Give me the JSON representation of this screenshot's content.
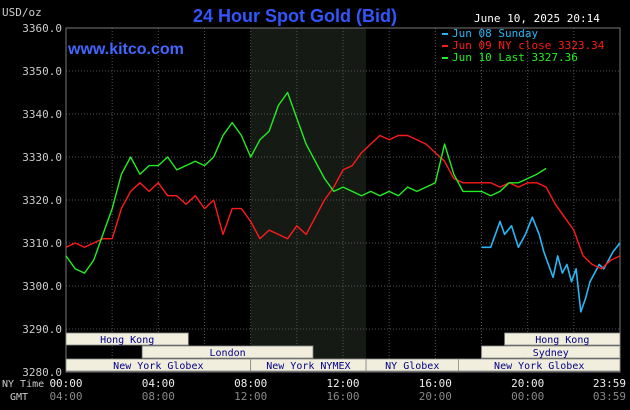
{
  "header": {
    "title": "24 Hour Spot Gold (Bid)",
    "currency": "USD/oz",
    "date": "June 10, 2025 20:14",
    "site": "www.kitco.com"
  },
  "legend": [
    {
      "label": "Jun 08 Sunday",
      "color": "#29b6f6"
    },
    {
      "label": "Jun 09 NY close 3323.34",
      "color": "#ff1a1a"
    },
    {
      "label": "Jun 10 Last 3327.36",
      "color": "#22ee22"
    }
  ],
  "axis": {
    "ny_label": "NY Time",
    "gmt_label": "GMT",
    "ny_ticks": [
      "00:00",
      "04:00",
      "08:00",
      "12:00",
      "16:00",
      "20:00",
      "23:59"
    ],
    "gmt_ticks": [
      "04:00",
      "08:00",
      "12:00",
      "16:00",
      "20:00",
      "00:00",
      "03:59"
    ],
    "y_ticks": [
      "3360.0",
      "3350.0",
      "3340.0",
      "3330.0",
      "3320.0",
      "3310.0",
      "3300.0",
      "3290.0",
      "3280.0"
    ]
  },
  "sessions": [
    {
      "label": "Hong Kong",
      "start": 0.0,
      "end": 5.3
    },
    {
      "label": "Hong Kong",
      "start": 19.0,
      "end": 24.0
    },
    {
      "label": "London",
      "start": 3.3,
      "end": 10.7
    },
    {
      "label": "Sydney",
      "start": 18.0,
      "end": 24.0
    },
    {
      "label": "New York Globex",
      "start": 0.0,
      "end": 8.0
    },
    {
      "label": "New York NYMEX",
      "start": 8.0,
      "end": 13.0
    },
    {
      "label": "NY Globex",
      "start": 13.0,
      "end": 17.0
    },
    {
      "label": "New York Globex",
      "start": 17.0,
      "end": 24.0
    }
  ],
  "colors": {
    "background": "#000000",
    "grid": "#555555",
    "nymex_shade": "#151a15",
    "title": "#3355ff",
    "site": "#4466ff",
    "session_fill": "#f2eedd",
    "session_text": "#000088",
    "axis_text": "#cccccc"
  },
  "chart_data": {
    "type": "line",
    "x_unit": "hours (NY time)",
    "xlim": [
      0,
      24
    ],
    "ylim": [
      3280,
      3360
    ],
    "y_unit": "USD/oz",
    "grid": true,
    "legend_position": "top-right",
    "series": [
      {
        "name": "Jun 08 Sunday",
        "color": "#29b6f6",
        "points": [
          [
            18.0,
            3309.0
          ],
          [
            18.4,
            3309.0
          ],
          [
            18.8,
            3315.0
          ],
          [
            19.0,
            3312.0
          ],
          [
            19.3,
            3314.0
          ],
          [
            19.6,
            3309.0
          ],
          [
            19.9,
            3312.0
          ],
          [
            20.2,
            3316.0
          ],
          [
            20.5,
            3312.0
          ],
          [
            20.7,
            3308.0
          ],
          [
            20.9,
            3305.0
          ],
          [
            21.1,
            3302.0
          ],
          [
            21.3,
            3307.0
          ],
          [
            21.5,
            3303.0
          ],
          [
            21.7,
            3305.0
          ],
          [
            21.9,
            3301.0
          ],
          [
            22.1,
            3304.0
          ],
          [
            22.3,
            3294.0
          ],
          [
            22.5,
            3297.0
          ],
          [
            22.7,
            3301.0
          ],
          [
            22.9,
            3303.0
          ],
          [
            23.1,
            3305.0
          ],
          [
            23.3,
            3304.0
          ],
          [
            23.5,
            3306.0
          ],
          [
            23.7,
            3308.0
          ],
          [
            24.0,
            3310.0
          ]
        ]
      },
      {
        "name": "Jun 09 NY close 3323.34",
        "color": "#ff1a1a",
        "points": [
          [
            0.0,
            3309.0
          ],
          [
            0.4,
            3310.0
          ],
          [
            0.8,
            3309.0
          ],
          [
            1.2,
            3310.0
          ],
          [
            1.6,
            3311.0
          ],
          [
            2.0,
            3311.0
          ],
          [
            2.4,
            3318.0
          ],
          [
            2.8,
            3322.0
          ],
          [
            3.2,
            3324.0
          ],
          [
            3.6,
            3322.0
          ],
          [
            4.0,
            3324.0
          ],
          [
            4.4,
            3321.0
          ],
          [
            4.8,
            3321.0
          ],
          [
            5.2,
            3319.0
          ],
          [
            5.6,
            3321.0
          ],
          [
            6.0,
            3318.0
          ],
          [
            6.4,
            3320.0
          ],
          [
            6.8,
            3312.0
          ],
          [
            7.2,
            3318.0
          ],
          [
            7.6,
            3318.0
          ],
          [
            8.0,
            3315.0
          ],
          [
            8.4,
            3311.0
          ],
          [
            8.8,
            3313.0
          ],
          [
            9.2,
            3312.0
          ],
          [
            9.6,
            3311.0
          ],
          [
            10.0,
            3314.0
          ],
          [
            10.4,
            3312.0
          ],
          [
            10.8,
            3316.0
          ],
          [
            11.2,
            3320.0
          ],
          [
            11.6,
            3323.0
          ],
          [
            12.0,
            3327.0
          ],
          [
            12.4,
            3328.0
          ],
          [
            12.8,
            3331.0
          ],
          [
            13.2,
            3333.0
          ],
          [
            13.6,
            3335.0
          ],
          [
            14.0,
            3334.0
          ],
          [
            14.4,
            3335.0
          ],
          [
            14.8,
            3335.0
          ],
          [
            15.2,
            3334.0
          ],
          [
            15.6,
            3333.0
          ],
          [
            16.0,
            3331.0
          ],
          [
            16.4,
            3329.0
          ],
          [
            16.8,
            3325.0
          ],
          [
            17.2,
            3324.0
          ],
          [
            17.6,
            3324.0
          ],
          [
            18.0,
            3324.0
          ],
          [
            18.4,
            3324.0
          ],
          [
            18.8,
            3323.0
          ],
          [
            19.2,
            3324.0
          ],
          [
            19.6,
            3323.0
          ],
          [
            20.0,
            3324.0
          ],
          [
            20.4,
            3324.0
          ],
          [
            20.8,
            3323.0
          ],
          [
            21.2,
            3319.0
          ],
          [
            21.6,
            3316.0
          ],
          [
            22.0,
            3313.0
          ],
          [
            22.4,
            3307.0
          ],
          [
            22.8,
            3305.0
          ],
          [
            23.2,
            3304.0
          ],
          [
            23.6,
            3306.0
          ],
          [
            24.0,
            3307.0
          ]
        ]
      },
      {
        "name": "Jun 10 Last 3327.36",
        "color": "#22ee22",
        "points": [
          [
            0.0,
            3307.0
          ],
          [
            0.4,
            3304.0
          ],
          [
            0.8,
            3303.0
          ],
          [
            1.2,
            3306.0
          ],
          [
            1.6,
            3312.0
          ],
          [
            2.0,
            3318.0
          ],
          [
            2.4,
            3326.0
          ],
          [
            2.8,
            3330.0
          ],
          [
            3.2,
            3326.0
          ],
          [
            3.6,
            3328.0
          ],
          [
            4.0,
            3328.0
          ],
          [
            4.4,
            3330.0
          ],
          [
            4.8,
            3327.0
          ],
          [
            5.2,
            3328.0
          ],
          [
            5.6,
            3329.0
          ],
          [
            6.0,
            3328.0
          ],
          [
            6.4,
            3330.0
          ],
          [
            6.8,
            3335.0
          ],
          [
            7.2,
            3338.0
          ],
          [
            7.6,
            3335.0
          ],
          [
            8.0,
            3330.0
          ],
          [
            8.4,
            3334.0
          ],
          [
            8.8,
            3336.0
          ],
          [
            9.2,
            3342.0
          ],
          [
            9.6,
            3345.0
          ],
          [
            10.0,
            3339.0
          ],
          [
            10.4,
            3333.0
          ],
          [
            10.8,
            3329.0
          ],
          [
            11.2,
            3325.0
          ],
          [
            11.6,
            3322.0
          ],
          [
            12.0,
            3323.0
          ],
          [
            12.4,
            3322.0
          ],
          [
            12.8,
            3321.0
          ],
          [
            13.2,
            3322.0
          ],
          [
            13.6,
            3321.0
          ],
          [
            14.0,
            3322.0
          ],
          [
            14.4,
            3321.0
          ],
          [
            14.8,
            3323.0
          ],
          [
            15.2,
            3322.0
          ],
          [
            15.6,
            3323.0
          ],
          [
            16.0,
            3324.0
          ],
          [
            16.4,
            3333.0
          ],
          [
            16.8,
            3326.0
          ],
          [
            17.2,
            3322.0
          ],
          [
            17.6,
            3322.0
          ],
          [
            18.0,
            3322.0
          ],
          [
            18.4,
            3321.0
          ],
          [
            18.8,
            3322.0
          ],
          [
            19.2,
            3324.0
          ],
          [
            19.6,
            3324.0
          ],
          [
            20.0,
            3325.0
          ],
          [
            20.4,
            3326.0
          ],
          [
            20.8,
            3327.36
          ]
        ]
      }
    ]
  }
}
